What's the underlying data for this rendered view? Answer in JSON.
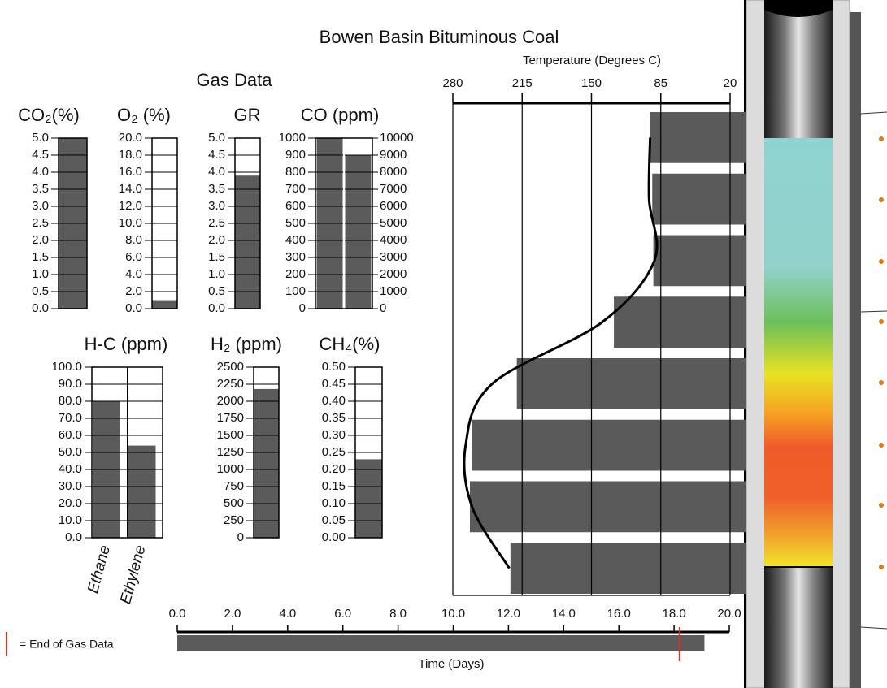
{
  "title": "Bowen Basin Bituminous Coal",
  "subtitle": "Gas Data",
  "chart_data": [
    {
      "type": "bar",
      "title": "CO₂(%)",
      "values": [
        5.0
      ],
      "color": "#5b5b5b",
      "ylim": [
        0,
        5
      ],
      "yticks": [
        {
          "value": 0,
          "label": "0.0"
        },
        {
          "value": 0.5,
          "label": "0.5"
        },
        {
          "value": 1,
          "label": "1.0"
        },
        {
          "value": 1.5,
          "label": "1.5"
        },
        {
          "value": 2,
          "label": "2.0"
        },
        {
          "value": 2.5,
          "label": "2.5"
        },
        {
          "value": 3,
          "label": "3.0"
        },
        {
          "value": 3.5,
          "label": "3.5"
        },
        {
          "value": 4,
          "label": "4.0"
        },
        {
          "value": 4.5,
          "label": "4.5"
        },
        {
          "value": 5,
          "label": "5.0"
        }
      ]
    },
    {
      "type": "bar",
      "title": "O₂ (%)",
      "values": [
        1.0
      ],
      "color": "#5b5b5b",
      "ylim": [
        0,
        20
      ],
      "yticks": [
        {
          "value": 0,
          "label": "0.0"
        },
        {
          "value": 2,
          "label": "2.0"
        },
        {
          "value": 4,
          "label": "4.0"
        },
        {
          "value": 6,
          "label": "6.0"
        },
        {
          "value": 8,
          "label": "8.0"
        },
        {
          "value": 10,
          "label": "10.0"
        },
        {
          "value": 12,
          "label": "12.0"
        },
        {
          "value": 14,
          "label": "14.0"
        },
        {
          "value": 16,
          "label": "16.0"
        },
        {
          "value": 18,
          "label": "18.0"
        },
        {
          "value": 20,
          "label": "20.0"
        }
      ]
    },
    {
      "type": "bar",
      "title": "GR",
      "values": [
        3.9
      ],
      "color": "#5b5b5b",
      "ylim": [
        0,
        5
      ],
      "yticks": [
        {
          "value": 0,
          "label": "0.0"
        },
        {
          "value": 0.5,
          "label": "0.5"
        },
        {
          "value": 1,
          "label": "1.0"
        },
        {
          "value": 1.5,
          "label": "1.5"
        },
        {
          "value": 2,
          "label": "2.0"
        },
        {
          "value": 2.5,
          "label": "2.5"
        },
        {
          "value": 3,
          "label": "3.0"
        },
        {
          "value": 3.5,
          "label": "3.5"
        },
        {
          "value": 4,
          "label": "4.0"
        },
        {
          "value": 4.5,
          "label": "4.5"
        },
        {
          "value": 5,
          "label": "5.0"
        }
      ]
    },
    {
      "type": "bar",
      "title": "CO (ppm)",
      "series": [
        {
          "color": "#5b5b5b",
          "values": [
            1000
          ]
        },
        {
          "color": "#5b5b5b",
          "values": [
            9000
          ],
          "axis": "y2"
        }
      ],
      "ylim": [
        0,
        1000
      ],
      "yticks": [
        0,
        100,
        200,
        300,
        400,
        500,
        600,
        700,
        800,
        900,
        1000
      ],
      "y2lim": [
        0,
        10000
      ],
      "y2ticks": [
        0,
        1000,
        2000,
        3000,
        4000,
        5000,
        6000,
        7000,
        8000,
        9000,
        10000
      ]
    },
    {
      "type": "bar",
      "title": "H-C (ppm)",
      "categories": [
        "Ethane",
        "Ethylene"
      ],
      "values": [
        80,
        54
      ],
      "color": "#5b5b5b",
      "ylim": [
        0,
        100
      ],
      "yticks": [
        {
          "value": 0,
          "label": "0.0"
        },
        {
          "value": 10,
          "label": "10.0"
        },
        {
          "value": 20,
          "label": "20.0"
        },
        {
          "value": 30,
          "label": "30.0"
        },
        {
          "value": 40,
          "label": "40.0"
        },
        {
          "value": 50,
          "label": "50.0"
        },
        {
          "value": 60,
          "label": "60.0"
        },
        {
          "value": 70,
          "label": "70.0"
        },
        {
          "value": 80,
          "label": "80.0"
        },
        {
          "value": 90,
          "label": "90.0"
        },
        {
          "value": 100,
          "label": "100.0"
        }
      ]
    },
    {
      "type": "bar",
      "title": "H₂ (ppm)",
      "values": [
        2180
      ],
      "color": "#5b5b5b",
      "ylim": [
        0,
        2500
      ],
      "yticks": [
        0,
        250,
        500,
        750,
        1000,
        1250,
        1500,
        1750,
        2000,
        2250,
        2500
      ]
    },
    {
      "type": "bar",
      "title": "CH₄(%)",
      "values": [
        0.23
      ],
      "color": "#5b5b5b",
      "ylim": [
        0,
        0.5
      ],
      "yticks": [
        {
          "value": 0,
          "label": "0.00"
        },
        {
          "value": 0.05,
          "label": "0.05"
        },
        {
          "value": 0.1,
          "label": "0.10"
        },
        {
          "value": 0.15,
          "label": "0.15"
        },
        {
          "value": 0.2,
          "label": "0.20"
        },
        {
          "value": 0.25,
          "label": "0.25"
        },
        {
          "value": 0.3,
          "label": "0.30"
        },
        {
          "value": 0.35,
          "label": "0.35"
        },
        {
          "value": 0.4,
          "label": "0.40"
        },
        {
          "value": 0.45,
          "label": "0.45"
        },
        {
          "value": 0.5,
          "label": "0.50"
        }
      ]
    },
    {
      "type": "combo",
      "title": "Temperature (Degrees C)",
      "categories": [
        null,
        null,
        null,
        null,
        null,
        null,
        null,
        null
      ],
      "series": [
        {
          "type": "bar",
          "color": "#5a5a5a",
          "values": [
            95,
            93,
            92,
            129,
            220,
            262,
            264,
            226
          ]
        },
        {
          "type": "line",
          "color": "#000000",
          "values": [
            95,
            96,
            91,
            140,
            243,
            268,
            262,
            227
          ]
        }
      ],
      "xlim": [
        280,
        20
      ],
      "xticks": [
        280,
        215,
        150,
        85,
        20
      ],
      "grid": true
    },
    {
      "type": "timeline",
      "xlabel": "Time (Days)",
      "values": [
        19.1
      ],
      "color": "#5b5b5b",
      "xlim": [
        0,
        20
      ],
      "xticks": [
        {
          "value": 0,
          "label": "0.0"
        },
        {
          "value": 2,
          "label": "2.0"
        },
        {
          "value": 4,
          "label": "4.0"
        },
        {
          "value": 6,
          "label": "6.0"
        },
        {
          "value": 8,
          "label": "8.0"
        },
        {
          "value": 10,
          "label": "10.0"
        },
        {
          "value": 12,
          "label": "12.0"
        },
        {
          "value": 14,
          "label": "14.0"
        },
        {
          "value": 16,
          "label": "16.0"
        },
        {
          "value": 18,
          "label": "18.0"
        },
        {
          "value": 20,
          "label": "20.0"
        }
      ],
      "end_of_gas_data": 18.2,
      "end_label": "= End of Gas Data",
      "end_color": "#e0302a"
    }
  ]
}
